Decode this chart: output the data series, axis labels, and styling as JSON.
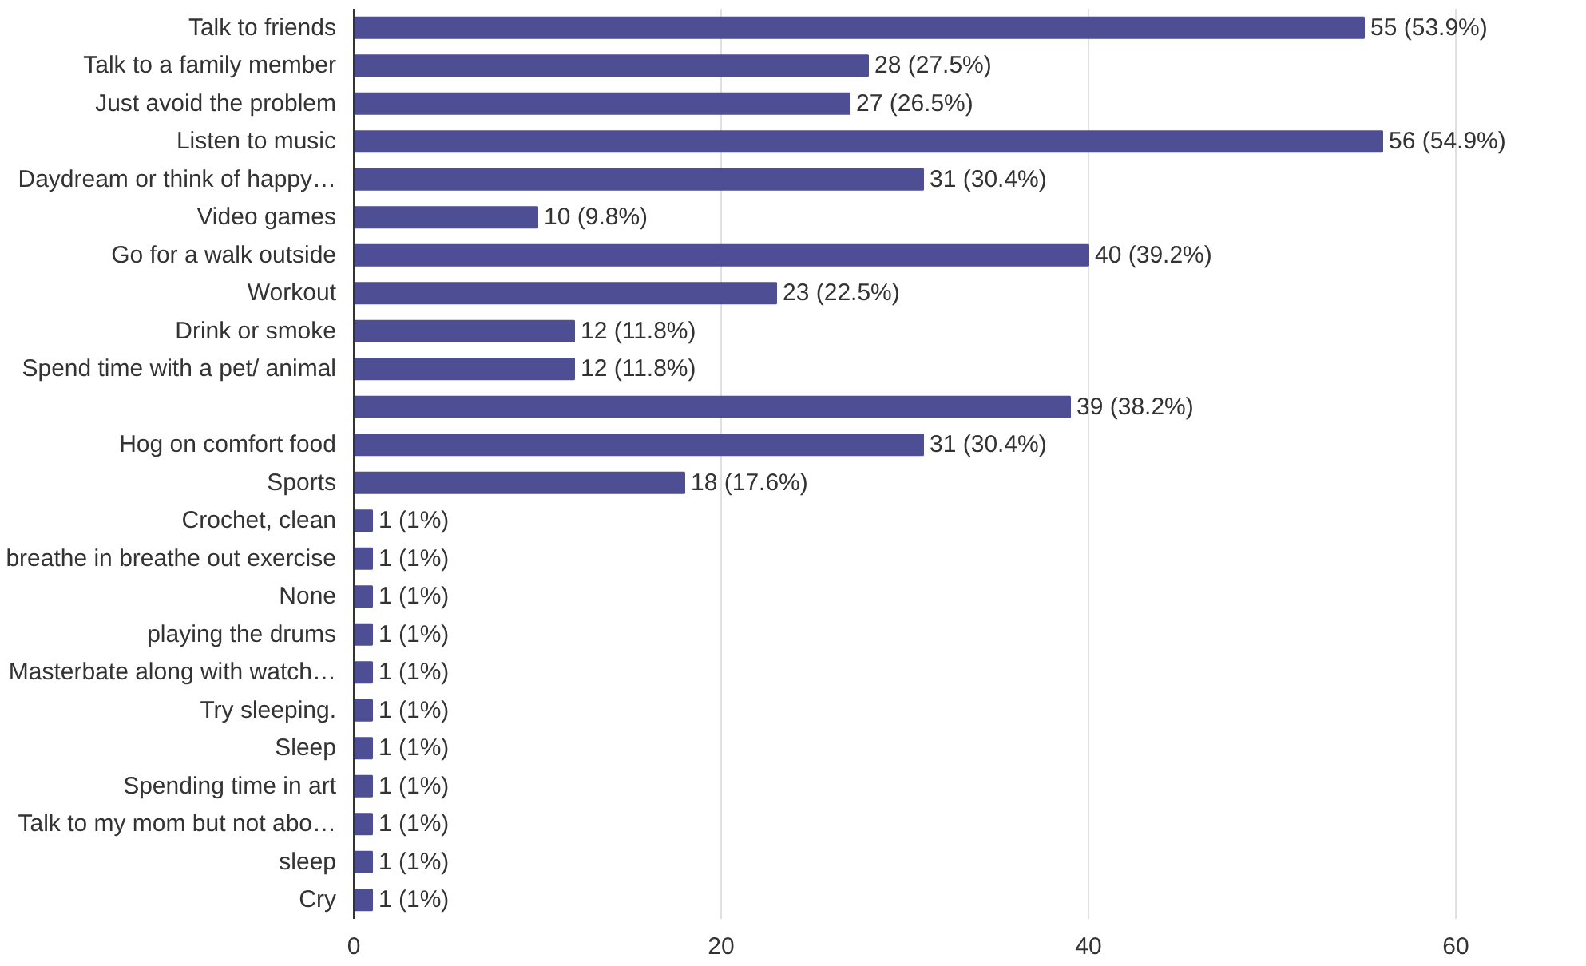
{
  "chart_data": {
    "type": "bar",
    "orientation": "horizontal",
    "categories": [
      "Talk to friends",
      "Talk to a family member",
      "Just avoid the problem",
      "Listen to music",
      "Daydream or think of happy…",
      "Video games",
      "Go for a walk outside",
      "Workout",
      "Drink or smoke",
      "Spend time with a pet/ animal",
      null,
      "Hog on comfort food",
      "Sports",
      "Crochet, clean",
      "breathe in breathe out exercise",
      "None",
      "playing the drums",
      "Masterbate along with watch…",
      "Try sleeping.",
      "Sleep",
      "Spending time in art",
      "Talk to my mom but not abo…",
      "sleep",
      "Cry"
    ],
    "values": [
      55,
      28,
      27,
      56,
      31,
      10,
      40,
      23,
      12,
      12,
      39,
      31,
      18,
      1,
      1,
      1,
      1,
      1,
      1,
      1,
      1,
      1,
      1,
      1
    ],
    "value_labels": [
      "55 (53.9%)",
      "28 (27.5%)",
      "27 (26.5%)",
      "56 (54.9%)",
      "31 (30.4%)",
      "10 (9.8%)",
      "40 (39.2%)",
      "23 (22.5%)",
      "12 (11.8%)",
      "12 (11.8%)",
      "39 (38.2%)",
      "31 (30.4%)",
      "18 (17.6%)",
      "1 (1%)",
      "1 (1%)",
      "1 (1%)",
      "1 (1%)",
      "1 (1%)",
      "1 (1%)",
      "1 (1%)",
      "1 (1%)",
      "1 (1%)",
      "1 (1%)",
      "1 (1%)"
    ],
    "color": "#4e4e95",
    "xlim": [
      0,
      60
    ],
    "xticks": [
      0,
      20,
      40,
      60
    ],
    "grid": "x"
  }
}
